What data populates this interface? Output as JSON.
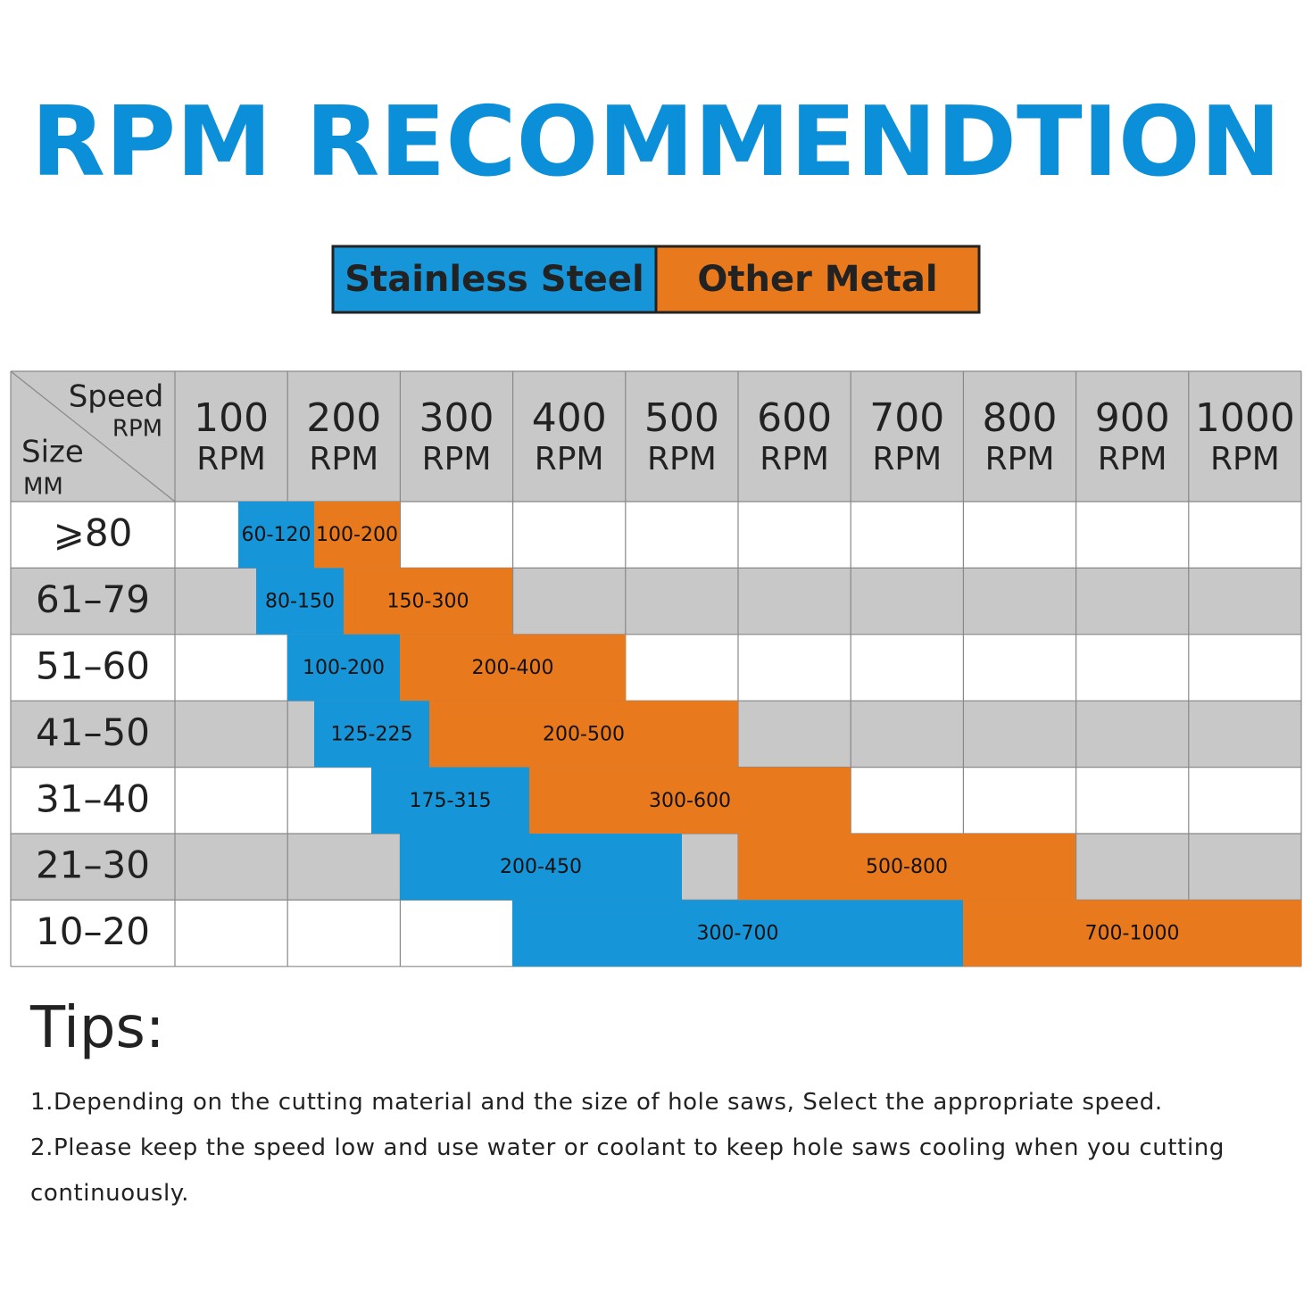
{
  "title": "RPM RECOMMENDTION",
  "legend": [
    {
      "label": "Stainless Steel",
      "color": "#1696d9"
    },
    {
      "label": "Other Metal",
      "color": "#e8791c"
    }
  ],
  "table": {
    "corner": {
      "speed": "Speed",
      "rpm": "RPM",
      "size": "Size",
      "mm": "MM"
    },
    "columns": [
      {
        "value": "100",
        "unit": "RPM"
      },
      {
        "value": "200",
        "unit": "RPM"
      },
      {
        "value": "300",
        "unit": "RPM"
      },
      {
        "value": "400",
        "unit": "RPM"
      },
      {
        "value": "500",
        "unit": "RPM"
      },
      {
        "value": "600",
        "unit": "RPM"
      },
      {
        "value": "700",
        "unit": "RPM"
      },
      {
        "value": "800",
        "unit": "RPM"
      },
      {
        "value": "900",
        "unit": "RPM"
      },
      {
        "value": "1000",
        "unit": "RPM"
      }
    ],
    "rows": [
      {
        "size": "⩾80",
        "stainless": "60-120",
        "other": "100-200"
      },
      {
        "size": "61–79",
        "stainless": "80-150",
        "other": "150-300"
      },
      {
        "size": "51–60",
        "stainless": "100-200",
        "other": "200-400"
      },
      {
        "size": "41–50",
        "stainless": "125-225",
        "other": "200-500"
      },
      {
        "size": "31–40",
        "stainless": "175-315",
        "other": "300-600"
      },
      {
        "size": "21–30",
        "stainless": "200-450",
        "other": "500-800"
      },
      {
        "size": "10–20",
        "stainless": "300-700",
        "other": "700-1000"
      }
    ]
  },
  "tips": {
    "heading": "Tips:",
    "items": [
      "1.Depending on the cutting material and the size of hole saws, Select the appropriate speed.",
      "2.Please keep the speed low and use water or coolant to keep hole saws cooling when you cutting continuously."
    ]
  }
}
